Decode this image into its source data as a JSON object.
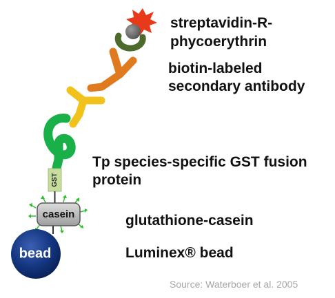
{
  "labels": {
    "sape_line1": "streptavidin-R-",
    "sape_line2": "phycoerythrin",
    "secondary_line1": "biotin-labeled",
    "secondary_line2": "secondary antibody",
    "fusion_line1": "Tp species-specific GST fusion",
    "fusion_line2": "protein",
    "casein": "glutathione-casein",
    "bead": "Luminex® bead"
  },
  "tags": {
    "gst": "GST",
    "casein": "casein",
    "bead": "bead"
  },
  "source": "Source: Waterboer et al. 2005",
  "colors": {
    "starburst": "#e8391a",
    "streptavidin_ball": "#6b6b6b",
    "streptavidin_cup": "#4c6a2c",
    "secondary_antibody": "#e07a1f",
    "primary_antibody": "#f2c21c",
    "fusion_protein": "#19b04a",
    "gst_tag": "#c7dd9e",
    "casein_box": "#b8b8b8",
    "casein_arrows": "#2ac02a",
    "bead": "#11317f"
  }
}
